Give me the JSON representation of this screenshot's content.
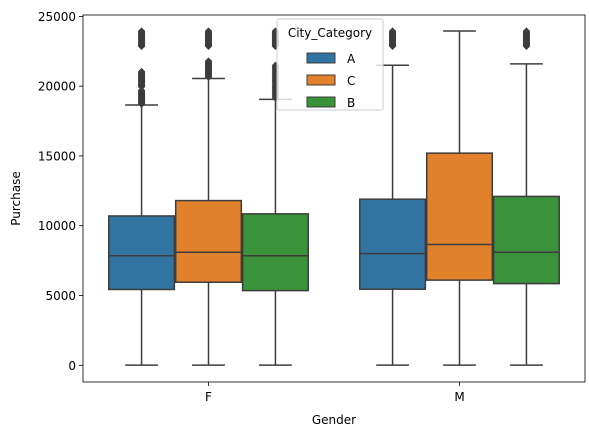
{
  "chart_data": {
    "type": "boxplot",
    "xlabel": "Gender",
    "ylabel": "Purchase",
    "categories": [
      "F",
      "M"
    ],
    "ylim": [
      -1200,
      25100
    ],
    "yticks": [
      0,
      5000,
      10000,
      15000,
      20000,
      25000
    ],
    "ytick_labels": [
      "0",
      "5000",
      "10000",
      "15000",
      "20000",
      "25000"
    ],
    "legend": {
      "title": "City_Category",
      "placement": "top-center"
    },
    "series": [
      {
        "name": "A",
        "color": "#3274a1",
        "boxes": [
          {
            "category": "F",
            "whisker_low": 12,
            "q1": 5430,
            "median": 7850,
            "q3": 10700,
            "whisker_high": 18650,
            "outlier_bands": [
              [
                18700,
                19700
              ],
              [
                19950,
                21050
              ],
              [
                22850,
                23950
              ]
            ]
          },
          {
            "category": "M",
            "whisker_low": 12,
            "q1": 5450,
            "median": 8000,
            "q3": 11900,
            "whisker_high": 21500,
            "outlier_bands": [
              [
                22850,
                23950
              ]
            ]
          }
        ]
      },
      {
        "name": "C",
        "color": "#e1812c",
        "boxes": [
          {
            "category": "F",
            "whisker_low": 12,
            "q1": 5950,
            "median": 8100,
            "q3": 11800,
            "whisker_high": 20550,
            "outlier_bands": [
              [
                20650,
                21800
              ],
              [
                22850,
                23950
              ]
            ]
          },
          {
            "category": "M",
            "whisker_low": 12,
            "q1": 6100,
            "median": 8650,
            "q3": 15200,
            "whisker_high": 23950,
            "outlier_bands": []
          }
        ]
      },
      {
        "name": "B",
        "color": "#3a923a",
        "boxes": [
          {
            "category": "F",
            "whisker_low": 12,
            "q1": 5350,
            "median": 7850,
            "q3": 10850,
            "whisker_high": 19050,
            "outlier_bands": [
              [
                19150,
                21500
              ],
              [
                22850,
                23950
              ]
            ]
          },
          {
            "category": "M",
            "whisker_low": 12,
            "q1": 5850,
            "median": 8100,
            "q3": 12100,
            "whisker_high": 21600,
            "outlier_bands": [
              [
                22850,
                23950
              ]
            ]
          }
        ]
      }
    ]
  }
}
